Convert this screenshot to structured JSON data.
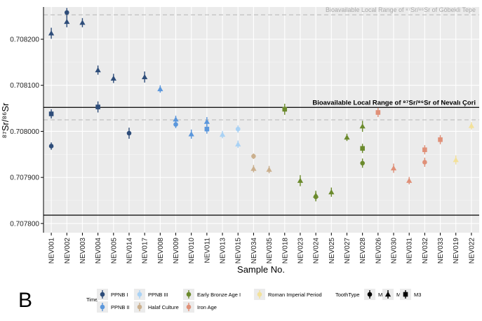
{
  "panel_letter": "B",
  "chart_data": {
    "type": "scatter",
    "xlabel": "Sample No.",
    "ylabel": "⁸⁷Sr/⁸⁶Sr",
    "ylim": [
      0.70778,
      0.70827
    ],
    "yticks": [
      0.7078,
      0.7079,
      0.708,
      0.7081,
      0.7082
    ],
    "ytick_labels": [
      "0.707800",
      "0.707900",
      "0.708000",
      "0.708100",
      "0.708200"
    ],
    "grid": true,
    "categories": [
      "NEV001",
      "NEV002",
      "NEV003",
      "NEV004",
      "NEV005",
      "NEV014",
      "NEV017",
      "NEV008",
      "NEV009",
      "NEV010",
      "NEV011",
      "NEV013",
      "NEV015",
      "NEV034",
      "NEV035",
      "NEV018",
      "NEV023",
      "NEV024",
      "NEV025",
      "NEV027",
      "NEV028",
      "NEV026",
      "NEV030",
      "NEV031",
      "NEV032",
      "NEV033",
      "NEV019",
      "NEV022"
    ],
    "reference_lines": [
      {
        "label": "Bioavailable Local Range of ⁸⁷Sr/⁸⁶Sr of Göbekli Tepe",
        "y": 0.708253,
        "style": "dashed",
        "label_color": "#aaaaaa"
      },
      {
        "label": "",
        "y": 0.708025,
        "style": "dashed"
      },
      {
        "label": "Bioavailable Local Range of ⁸⁷Sr/⁸⁶Sr of Nevalı Çori",
        "y": 0.708052,
        "style": "solid",
        "label_color": "#000000"
      },
      {
        "label": "",
        "y": 0.707818,
        "style": "solid"
      }
    ],
    "colors": {
      "PPNB I": "#2e4d7a",
      "PPNB II": "#5b97dc",
      "PPNB III": "#a9d2f5",
      "Halaf Culture": "#cbb08e",
      "Early Bronze Age I": "#6b8a2c",
      "Iron Age": "#e09078",
      "Roman Imperial Period": "#f3e19a"
    },
    "points": [
      {
        "sample": "NEV001",
        "time": "PPNB I",
        "tooth": "M1",
        "y": 0.707968,
        "err": 8e-06
      },
      {
        "sample": "NEV001",
        "time": "PPNB I",
        "tooth": "M2",
        "y": 0.708213,
        "err": 1.2e-05
      },
      {
        "sample": "NEV001",
        "time": "PPNB I",
        "tooth": "M3",
        "y": 0.708038,
        "err": 1e-05
      },
      {
        "sample": "NEV002",
        "time": "PPNB I",
        "tooth": "M1",
        "y": 0.708258,
        "err": 1e-05
      },
      {
        "sample": "NEV002",
        "time": "PPNB I",
        "tooth": "M2",
        "y": 0.708238,
        "err": 1.2e-05
      },
      {
        "sample": "NEV003",
        "time": "PPNB I",
        "tooth": "M2",
        "y": 0.708236,
        "err": 1e-05
      },
      {
        "sample": "NEV004",
        "time": "PPNB I",
        "tooth": "M2",
        "y": 0.708133,
        "err": 1e-05
      },
      {
        "sample": "NEV004",
        "time": "PPNB I",
        "tooth": "M3",
        "y": 0.708053,
        "err": 1.2e-05
      },
      {
        "sample": "NEV005",
        "time": "PPNB I",
        "tooth": "M2",
        "y": 0.708115,
        "err": 1e-05
      },
      {
        "sample": "NEV014",
        "time": "PPNB I",
        "tooth": "M1",
        "y": 0.707996,
        "err": 1.2e-05
      },
      {
        "sample": "NEV017",
        "time": "PPNB I",
        "tooth": "M2",
        "y": 0.708118,
        "err": 1.2e-05
      },
      {
        "sample": "NEV008",
        "time": "PPNB II",
        "tooth": "M2",
        "y": 0.708092,
        "err": 8e-06
      },
      {
        "sample": "NEV009",
        "time": "PPNB II",
        "tooth": "M1",
        "y": 0.708015,
        "err": 8e-06
      },
      {
        "sample": "NEV009",
        "time": "PPNB II",
        "tooth": "M2",
        "y": 0.708026,
        "err": 8e-06
      },
      {
        "sample": "NEV010",
        "time": "PPNB II",
        "tooth": "M2",
        "y": 0.707994,
        "err": 1e-05
      },
      {
        "sample": "NEV011",
        "time": "PPNB II",
        "tooth": "M2",
        "y": 0.708021,
        "err": 1e-05
      },
      {
        "sample": "NEV011",
        "time": "PPNB II",
        "tooth": "M3",
        "y": 0.708005,
        "err": 1e-05
      },
      {
        "sample": "NEV013",
        "time": "PPNB III",
        "tooth": "M2",
        "y": 0.707993,
        "err": 8e-06
      },
      {
        "sample": "NEV015",
        "time": "PPNB III",
        "tooth": "M1",
        "y": 0.708005,
        "err": 8e-06
      },
      {
        "sample": "NEV015",
        "time": "PPNB III",
        "tooth": "M2",
        "y": 0.707972,
        "err": 8e-06
      },
      {
        "sample": "NEV034",
        "time": "Halaf Culture",
        "tooth": "M1",
        "y": 0.707946,
        "err": 6e-06
      },
      {
        "sample": "NEV034",
        "time": "Halaf Culture",
        "tooth": "M2",
        "y": 0.707919,
        "err": 8e-06
      },
      {
        "sample": "NEV035",
        "time": "Halaf Culture",
        "tooth": "M2",
        "y": 0.707917,
        "err": 8e-06
      },
      {
        "sample": "NEV018",
        "time": "Early Bronze Age I",
        "tooth": "M3",
        "y": 0.708048,
        "err": 1.2e-05
      },
      {
        "sample": "NEV023",
        "time": "Early Bronze Age I",
        "tooth": "M2",
        "y": 0.707893,
        "err": 1.2e-05
      },
      {
        "sample": "NEV024",
        "time": "Early Bronze Age I",
        "tooth": "M1",
        "y": 0.707858,
        "err": 1e-05
      },
      {
        "sample": "NEV024",
        "time": "Early Bronze Age I",
        "tooth": "M2",
        "y": 0.707861,
        "err": 1e-05
      },
      {
        "sample": "NEV025",
        "time": "Early Bronze Age I",
        "tooth": "M2",
        "y": 0.707868,
        "err": 1e-05
      },
      {
        "sample": "NEV027",
        "time": "Early Bronze Age I",
        "tooth": "M2",
        "y": 0.707987,
        "err": 8e-06
      },
      {
        "sample": "NEV028",
        "time": "Early Bronze Age I",
        "tooth": "M1",
        "y": 0.707931,
        "err": 1e-05
      },
      {
        "sample": "NEV028",
        "time": "Early Bronze Age I",
        "tooth": "M2",
        "y": 0.708011,
        "err": 1.2e-05
      },
      {
        "sample": "NEV028",
        "time": "Early Bronze Age I",
        "tooth": "M3",
        "y": 0.707963,
        "err": 1e-05
      },
      {
        "sample": "NEV026",
        "time": "Iron Age",
        "tooth": "M3",
        "y": 0.708041,
        "err": 1e-05
      },
      {
        "sample": "NEV030",
        "time": "Iron Age",
        "tooth": "M2",
        "y": 0.70792,
        "err": 1e-05
      },
      {
        "sample": "NEV031",
        "time": "Iron Age",
        "tooth": "M2",
        "y": 0.707893,
        "err": 8e-06
      },
      {
        "sample": "NEV032",
        "time": "Iron Age",
        "tooth": "M1",
        "y": 0.707933,
        "err": 1e-05
      },
      {
        "sample": "NEV032",
        "time": "Iron Age",
        "tooth": "M3",
        "y": 0.70796,
        "err": 1e-05
      },
      {
        "sample": "NEV033",
        "time": "Iron Age",
        "tooth": "M3",
        "y": 0.707982,
        "err": 1e-05
      },
      {
        "sample": "NEV019",
        "time": "Roman Imperial Period",
        "tooth": "M2",
        "y": 0.707938,
        "err": 1e-05
      },
      {
        "sample": "NEV022",
        "time": "Roman Imperial Period",
        "tooth": "M2",
        "y": 0.708012,
        "err": 8e-06
      }
    ],
    "legend": {
      "placement": "bottom",
      "time_title": "Time",
      "time_entries": [
        "PPNB I",
        "PPNB II",
        "PPNB III",
        "Halaf Culture",
        "Early Bronze Age I",
        "Iron Age",
        "Roman Imperial Period"
      ],
      "tooth_title": "ToothType",
      "tooth_entries": [
        "M1",
        "M2",
        "M3"
      ]
    }
  }
}
